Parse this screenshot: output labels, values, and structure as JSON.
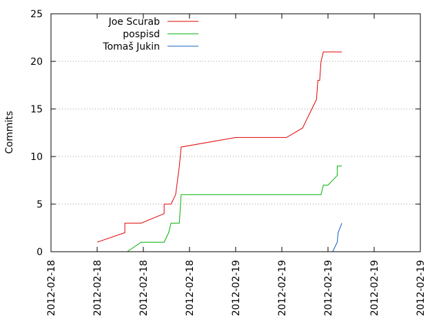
{
  "chart_data": {
    "type": "line",
    "title": "",
    "xlabel": "",
    "ylabel": "Commits",
    "ylim": [
      0,
      25
    ],
    "yticks": [
      0,
      5,
      10,
      15,
      20,
      25
    ],
    "x_tick_labels": [
      "2012-02-18",
      "2012-02-18",
      "2012-02-18",
      "2012-02-18",
      "2012-02-19",
      "2012-02-19",
      "2012-02-19",
      "2012-02-19",
      "2012-02-19"
    ],
    "grid": "y-dotted",
    "legend": "top-left",
    "series": [
      {
        "name": "Joe Scurab",
        "color": "#e00000",
        "points": [
          [
            1.0,
            1
          ],
          [
            1.6,
            2
          ],
          [
            1.6,
            3
          ],
          [
            1.95,
            3
          ],
          [
            2.45,
            4
          ],
          [
            2.45,
            5
          ],
          [
            2.6,
            5
          ],
          [
            2.7,
            6
          ],
          [
            2.78,
            9
          ],
          [
            2.8,
            10
          ],
          [
            2.82,
            11
          ],
          [
            4.0,
            12
          ],
          [
            5.0,
            12
          ],
          [
            5.1,
            12
          ],
          [
            5.45,
            13
          ],
          [
            5.55,
            14
          ],
          [
            5.65,
            15
          ],
          [
            5.75,
            16
          ],
          [
            5.78,
            18
          ],
          [
            5.82,
            18
          ],
          [
            5.85,
            20
          ],
          [
            5.9,
            21
          ],
          [
            6.3,
            21
          ]
        ]
      },
      {
        "name": "pospisd",
        "color": "#00b000",
        "points": [
          [
            1.65,
            0
          ],
          [
            1.95,
            1
          ],
          [
            2.45,
            1
          ],
          [
            2.55,
            2
          ],
          [
            2.6,
            3
          ],
          [
            2.78,
            3
          ],
          [
            2.82,
            6
          ],
          [
            5.0,
            6
          ],
          [
            5.85,
            6
          ],
          [
            5.9,
            7
          ],
          [
            6.0,
            7
          ],
          [
            6.2,
            8
          ],
          [
            6.2,
            9
          ],
          [
            6.3,
            9
          ]
        ]
      },
      {
        "name": "Tomaš Jukin",
        "color": "#1060c0",
        "points": [
          [
            6.1,
            0
          ],
          [
            6.2,
            1
          ],
          [
            6.22,
            2
          ],
          [
            6.3,
            3
          ]
        ]
      }
    ]
  }
}
